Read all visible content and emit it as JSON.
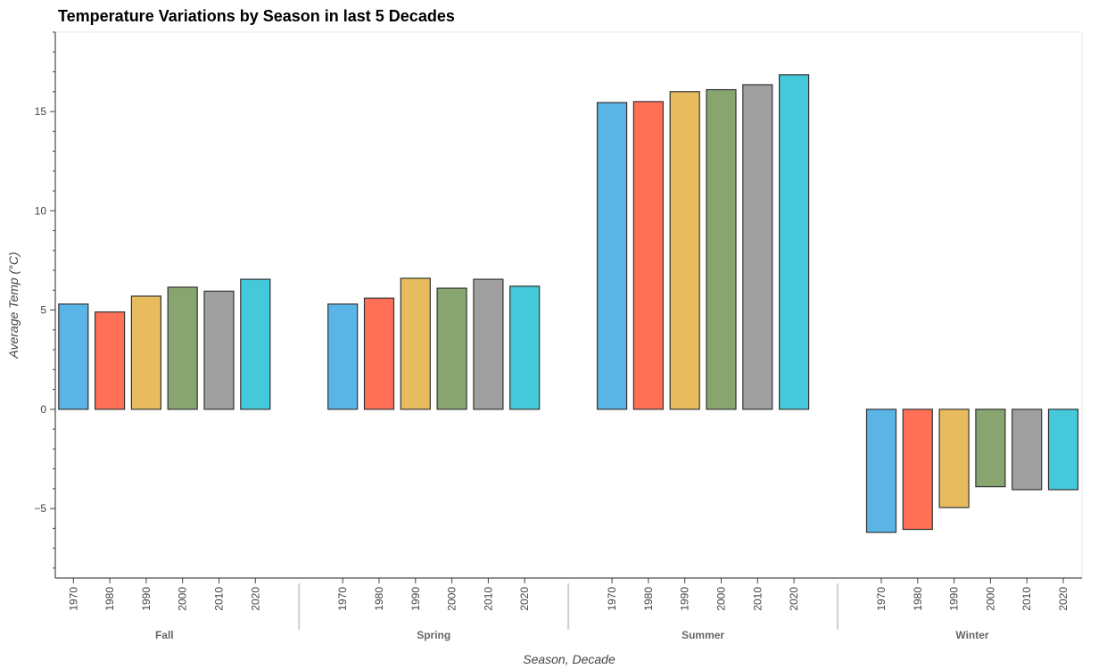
{
  "chart_data": {
    "type": "bar",
    "title": "Temperature Variations by Season in last 5 Decades",
    "xlabel": "Season, Decade",
    "ylabel": "Average Temp (°C)",
    "groups": [
      "Fall",
      "Spring",
      "Summer",
      "Winter"
    ],
    "categories": [
      "1970",
      "1980",
      "1990",
      "2000",
      "2010",
      "2020"
    ],
    "series_colors": [
      "#5ab4e5",
      "#ff7057",
      "#e8bc5e",
      "#88a570",
      "#a0a0a0",
      "#44c9da"
    ],
    "values": {
      "Fall": [
        5.3,
        4.9,
        5.7,
        6.15,
        5.95,
        6.55
      ],
      "Spring": [
        5.3,
        5.6,
        6.6,
        6.1,
        6.55,
        6.2
      ],
      "Summer": [
        15.45,
        15.5,
        16.0,
        16.1,
        16.35,
        16.85
      ],
      "Winter": [
        -6.2,
        -6.05,
        -4.95,
        -3.9,
        -4.05,
        -4.05
      ]
    },
    "ylim": [
      -8.5,
      19.0
    ],
    "yticks": [
      -5,
      0,
      5,
      10,
      15
    ],
    "grid": false,
    "legend": "none"
  }
}
